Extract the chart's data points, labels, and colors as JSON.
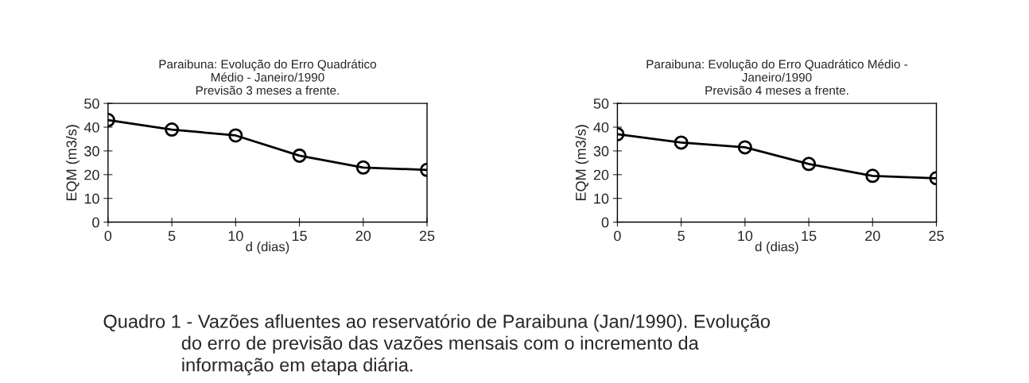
{
  "chart_data": [
    {
      "type": "line",
      "title": "Paraibuna: Evolução do Erro Quadrático\nMédio - Janeiro/1990\nPrevisão 3 meses a frente.",
      "xlabel": "d (dias)",
      "ylabel": "EQM (m3/s)",
      "x": [
        0,
        5,
        10,
        15,
        20,
        25
      ],
      "series": [
        {
          "color": "#000000",
          "values": [
            43,
            39,
            36.5,
            28,
            23,
            22
          ]
        }
      ],
      "xlim": [
        0,
        25
      ],
      "xticks": [
        0,
        5,
        10,
        15,
        20,
        25
      ],
      "ylim": [
        0,
        50
      ],
      "yticks": [
        0,
        10,
        20,
        30,
        40,
        50
      ],
      "marker": "circle",
      "line_style": "solid",
      "grid": false,
      "legend": false
    },
    {
      "type": "line",
      "title": "Paraibuna: Evolução do Erro Quadrático Médio -\nJaneiro/1990\nPrevisão 4 meses a frente.",
      "xlabel": "d (dias)",
      "ylabel": "EQM (m3/s)",
      "x": [
        0,
        5,
        10,
        15,
        20,
        25
      ],
      "series": [
        {
          "color": "#000000",
          "values": [
            37,
            33.5,
            31.5,
            24.5,
            19.5,
            18.5
          ]
        }
      ],
      "xlim": [
        0,
        25
      ],
      "xticks": [
        0,
        5,
        10,
        15,
        20,
        25
      ],
      "ylim": [
        0,
        50
      ],
      "yticks": [
        0,
        10,
        20,
        30,
        40,
        50
      ],
      "marker": "circle",
      "line_style": "solid",
      "grid": false,
      "legend": false,
      "annotations": [
        "Quadro 1 - Vazões afluentes ao reservatório de Paraibuna (Jan/1990). Evolução\n               do erro de previsão das vazões mensais com o incremento da\n               informação em etapa diária."
      ]
    }
  ]
}
